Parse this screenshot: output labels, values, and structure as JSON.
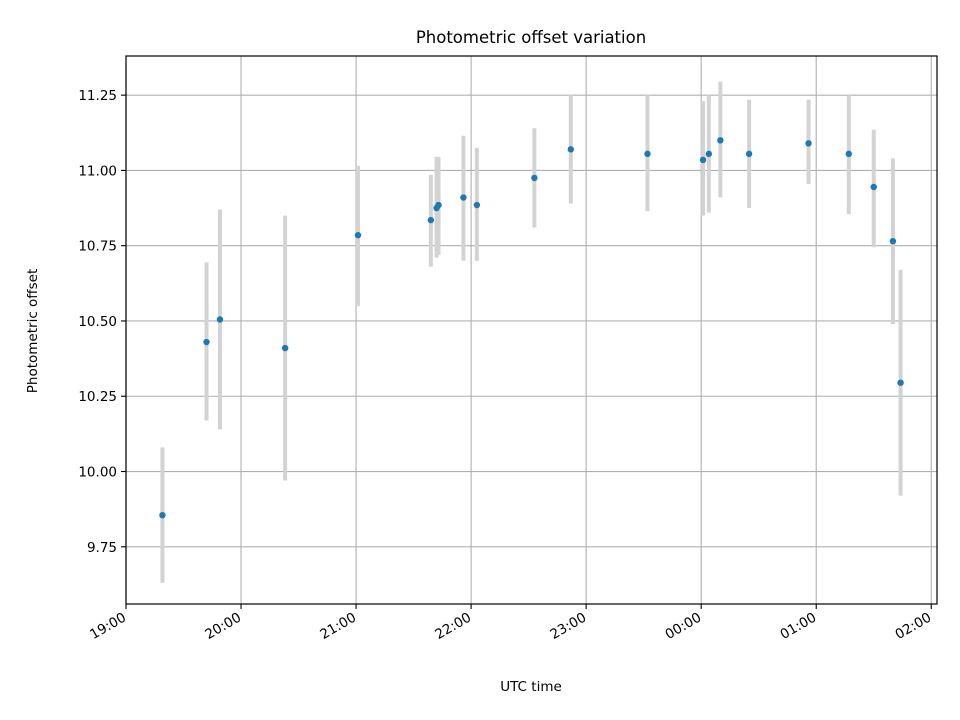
{
  "chart_data": {
    "type": "scatter",
    "title": "Photometric offset variation",
    "xlabel": "UTC time",
    "ylabel": "Photometric offset",
    "x_axis": {
      "kind": "time",
      "range": [
        "19:00",
        "26:03"
      ],
      "ticks": [
        "19:00",
        "20:00",
        "21:00",
        "22:00",
        "23:00",
        "00:00",
        "01:00",
        "02:00"
      ]
    },
    "y_axis": {
      "range": [
        9.56,
        11.38
      ],
      "ticks": [
        "9.75",
        "10.00",
        "10.25",
        "10.50",
        "10.75",
        "11.00",
        "11.25"
      ]
    },
    "grid": true,
    "legend": null,
    "colors": {
      "point": "#1f77b4",
      "errorbar": "#d3d3d3",
      "grid": "#b0b0b0",
      "axes": "#000000"
    },
    "points": [
      {
        "x": "19:19",
        "y": 9.855,
        "yerr": [
          9.63,
          10.08
        ]
      },
      {
        "x": "19:42",
        "y": 10.43,
        "yerr": [
          10.17,
          10.695
        ]
      },
      {
        "x": "19:49",
        "y": 10.505,
        "yerr": [
          10.14,
          10.87
        ]
      },
      {
        "x": "20:23",
        "y": 10.41,
        "yerr": [
          9.97,
          10.85
        ]
      },
      {
        "x": "21:01",
        "y": 10.785,
        "yerr": [
          10.55,
          11.015
        ]
      },
      {
        "x": "21:39",
        "y": 10.835,
        "yerr": [
          10.68,
          10.985
        ]
      },
      {
        "x": "21:42",
        "y": 10.875,
        "yerr": [
          10.71,
          11.045
        ]
      },
      {
        "x": "21:43",
        "y": 10.885,
        "yerr": [
          10.72,
          11.045
        ]
      },
      {
        "x": "21:56",
        "y": 10.91,
        "yerr": [
          10.7,
          11.115
        ]
      },
      {
        "x": "22:03",
        "y": 10.885,
        "yerr": [
          10.7,
          11.075
        ]
      },
      {
        "x": "22:33",
        "y": 10.975,
        "yerr": [
          10.81,
          11.14
        ]
      },
      {
        "x": "22:52",
        "y": 11.07,
        "yerr": [
          10.89,
          11.25
        ]
      },
      {
        "x": "23:32",
        "y": 11.055,
        "yerr": [
          10.865,
          11.25
        ]
      },
      {
        "x": "24:01",
        "y": 11.035,
        "yerr": [
          10.85,
          11.23
        ]
      },
      {
        "x": "24:04",
        "y": 11.055,
        "yerr": [
          10.86,
          11.25
        ]
      },
      {
        "x": "24:10",
        "y": 11.1,
        "yerr": [
          10.91,
          11.295
        ]
      },
      {
        "x": "24:25",
        "y": 11.055,
        "yerr": [
          10.875,
          11.235
        ]
      },
      {
        "x": "24:56",
        "y": 11.09,
        "yerr": [
          10.955,
          11.235
        ]
      },
      {
        "x": "25:17",
        "y": 11.055,
        "yerr": [
          10.855,
          11.25
        ]
      },
      {
        "x": "25:30",
        "y": 10.945,
        "yerr": [
          10.745,
          11.135
        ]
      },
      {
        "x": "25:40",
        "y": 10.765,
        "yerr": [
          10.49,
          11.04
        ]
      },
      {
        "x": "25:44",
        "y": 10.295,
        "yerr": [
          9.92,
          10.67
        ]
      }
    ]
  }
}
